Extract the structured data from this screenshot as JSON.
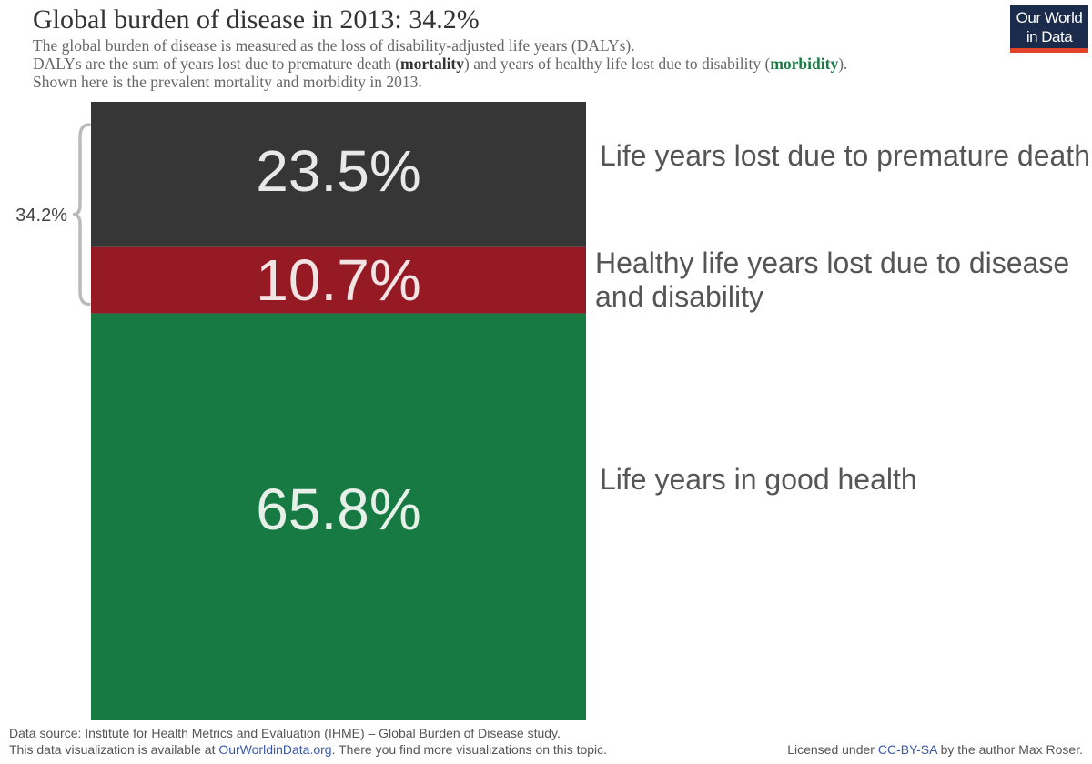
{
  "header": {
    "title": "Global burden of disease in 2013: 34.2%",
    "subtitle_line1": "The global burden of disease is measured as the loss of disability-adjusted life years (DALYs).",
    "subtitle_line2_a": "DALYs are the sum of years lost due to premature death (",
    "subtitle_line2_mortality": "mortality",
    "subtitle_line2_b": ") and years of healthy life lost due to disability (",
    "subtitle_line2_morbidity": "morbidity",
    "subtitle_line2_c": ").",
    "subtitle_line3": "Shown here is the prevalent mortality and morbidity in 2013."
  },
  "logo": {
    "line1": "Our World",
    "line2": "in Data"
  },
  "chart_data": {
    "type": "bar",
    "stacked": true,
    "orientation": "vertical",
    "categories": [
      "2013"
    ],
    "series": [
      {
        "name": "Life years lost due to premature death",
        "values": [
          23.5
        ],
        "value_label": "23.5%",
        "color": "#363636",
        "label_color": "#e8e8e8"
      },
      {
        "name": "Healthy life years lost due to disease and disability",
        "values": [
          10.7
        ],
        "value_label": "10.7%",
        "color": "#951a24",
        "label_color": "#f2e4e4"
      },
      {
        "name": "Life years in good health",
        "values": [
          65.8
        ],
        "value_label": "65.8%",
        "color": "#177a43",
        "label_color": "#e6efe8"
      }
    ],
    "bracket": {
      "label": "34.2%",
      "spans_series": [
        0,
        1
      ],
      "color": "#bbbbbb"
    },
    "title": "Global burden of disease in 2013: 34.2%",
    "xlabel": "",
    "ylabel": "",
    "ylim": [
      0,
      100
    ],
    "grid": false,
    "legend": "right"
  },
  "footer": {
    "source": "Data source: Institute for Health Metrics and Evaluation (IHME) – Global Burden of Disease study.",
    "availability_a": "This data visualization is available at ",
    "availability_link": "OurWorldinData.org",
    "availability_b": ". There you find more visualizations on this topic.",
    "license_a": "Licensed under ",
    "license_link": "CC-BY-SA",
    "license_b": " by the author Max Roser."
  }
}
